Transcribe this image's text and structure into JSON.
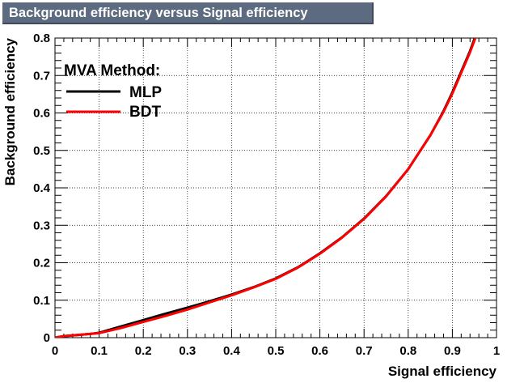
{
  "title": "Background efficiency versus Signal efficiency",
  "chart_data": {
    "type": "line",
    "title": "Background efficiency versus Signal efficiency",
    "xlabel": "Signal efficiency",
    "ylabel": "Background efficiency",
    "xlim": [
      0,
      1
    ],
    "ylim": [
      0,
      0.8
    ],
    "x_ticks": [
      "0",
      "0.1",
      "0.2",
      "0.3",
      "0.4",
      "0.5",
      "0.6",
      "0.7",
      "0.8",
      "0.9",
      "1"
    ],
    "y_ticks": [
      "0",
      "0.1",
      "0.2",
      "0.3",
      "0.4",
      "0.5",
      "0.6",
      "0.7",
      "0.8"
    ],
    "grid": true,
    "legend": {
      "title": "MVA Method:",
      "placement": "top-left",
      "entries": [
        "MLP",
        "BDT"
      ]
    },
    "series": [
      {
        "name": "MLP",
        "color": "#000000",
        "x": [
          0.0,
          0.02,
          0.05,
          0.08,
          0.1,
          0.15,
          0.2,
          0.25,
          0.3,
          0.35,
          0.4,
          0.45,
          0.5,
          0.55,
          0.6,
          0.65,
          0.7,
          0.75,
          0.8,
          0.85,
          0.88,
          0.9,
          0.92,
          0.94,
          0.96
        ],
        "y": [
          0.0,
          0.004,
          0.007,
          0.01,
          0.013,
          0.03,
          0.047,
          0.064,
          0.08,
          0.097,
          0.115,
          0.135,
          0.158,
          0.188,
          0.225,
          0.268,
          0.318,
          0.378,
          0.45,
          0.54,
          0.605,
          0.655,
          0.71,
          0.765,
          0.83
        ]
      },
      {
        "name": "BDT",
        "color": "#ff0000",
        "x": [
          0.0,
          0.02,
          0.05,
          0.08,
          0.1,
          0.15,
          0.2,
          0.25,
          0.3,
          0.35,
          0.4,
          0.45,
          0.5,
          0.55,
          0.6,
          0.65,
          0.7,
          0.75,
          0.8,
          0.85,
          0.88,
          0.9,
          0.92,
          0.94,
          0.96
        ],
        "y": [
          0.0,
          0.004,
          0.007,
          0.01,
          0.012,
          0.026,
          0.042,
          0.058,
          0.075,
          0.094,
          0.113,
          0.134,
          0.157,
          0.187,
          0.224,
          0.267,
          0.317,
          0.377,
          0.45,
          0.54,
          0.603,
          0.652,
          0.707,
          0.762,
          0.825
        ]
      }
    ]
  }
}
